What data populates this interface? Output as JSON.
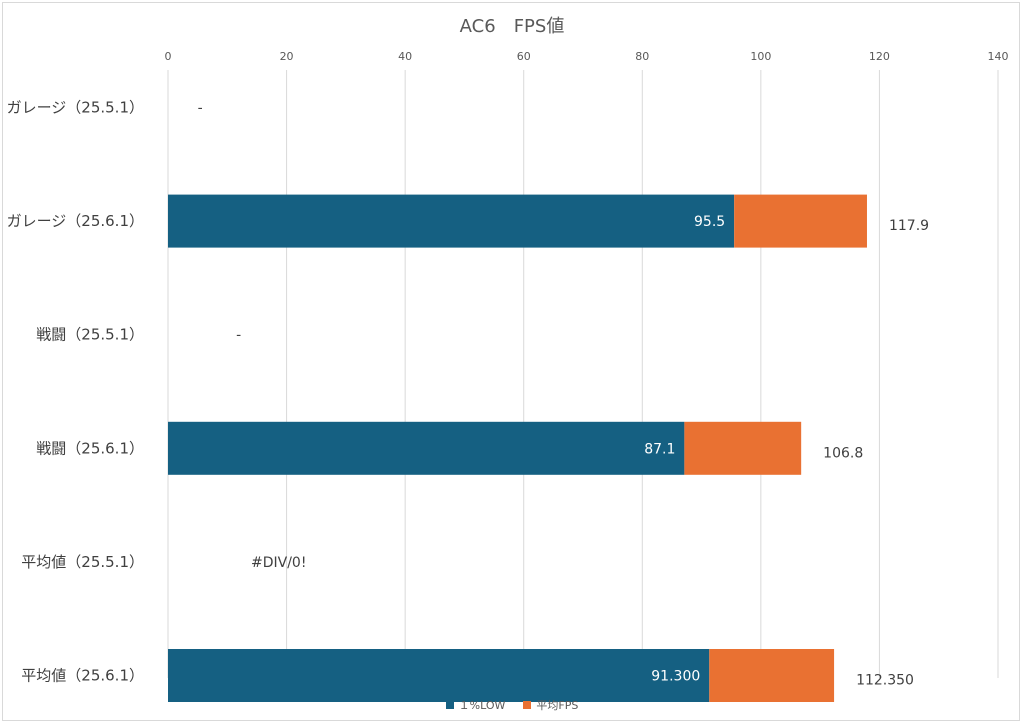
{
  "chart_data": {
    "type": "bar",
    "orientation": "horizontal",
    "stacked": true,
    "title": "AC6　FPS値",
    "xlim": [
      0,
      140
    ],
    "xticks": [
      0,
      20,
      40,
      60,
      80,
      100,
      120,
      140
    ],
    "grid": true,
    "legend_position": "bottom",
    "categories": [
      "ガレージ（25.5.1）",
      "ガレージ（25.6.1）",
      "戦闘（25.5.1）",
      "戦闘（25.6.1）",
      "平均値（25.5.1）",
      "平均値（25.6.1）"
    ],
    "series": [
      {
        "name": "１%LOW",
        "color": "#156082",
        "values": [
          null,
          95.5,
          null,
          87.1,
          null,
          91.3
        ],
        "labels": [
          "",
          "95.5",
          "",
          "87.1",
          "",
          "91.300"
        ]
      },
      {
        "name": "平均FPS",
        "color": "#E97132",
        "values": [
          null,
          22.4,
          null,
          19.7,
          null,
          21.05
        ],
        "totals": [
          null,
          117.9,
          null,
          106.8,
          null,
          112.35
        ],
        "labels": [
          "",
          "117.9",
          "",
          "106.8",
          "",
          "112.350"
        ]
      }
    ],
    "notes": [
      {
        "category": 0,
        "text": "-",
        "x": 5
      },
      {
        "category": 2,
        "text": "-",
        "x": 11.5
      },
      {
        "category": 4,
        "text": "#DIV/0!",
        "x": 14
      }
    ]
  }
}
